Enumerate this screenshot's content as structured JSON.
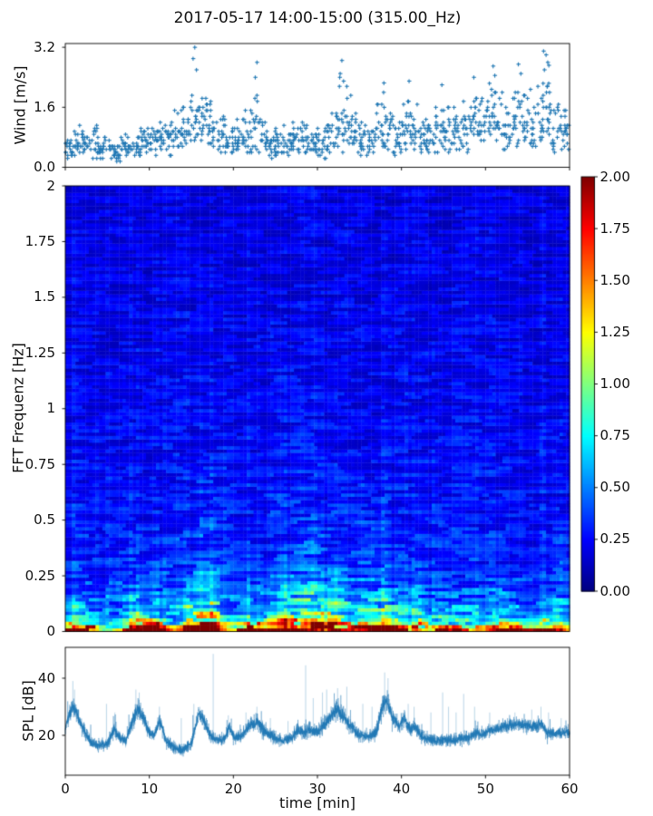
{
  "title": "2017-05-17 14:00-15:00 (315.00_Hz)",
  "chart_data": [
    {
      "type": "scatter",
      "name": "wind",
      "ylabel": "Wind [m/s]",
      "yticks": [
        0.0,
        1.6,
        3.2
      ],
      "ylim": [
        0,
        3.3
      ],
      "xlim": [
        0,
        60
      ],
      "xticks": [
        0,
        10,
        20,
        30,
        40,
        50,
        60
      ],
      "marker": "plus",
      "color": "#1f77b4",
      "points_per_minute": 19,
      "value_quantum": 0.08,
      "envelope_minutes": {
        "lo": [
          0.2,
          0.2,
          0.3,
          0.2,
          0.2,
          0.1,
          0.15,
          0.2,
          0.2,
          0.3,
          0.3,
          0.4,
          0.3,
          0.4,
          0.5,
          0.5,
          0.5,
          0.4,
          0.3,
          0.3,
          0.3,
          0.3,
          0.4,
          0.3,
          0.2,
          0.3,
          0.2,
          0.3,
          0.3,
          0.2,
          0.2,
          0.3,
          0.4,
          0.4,
          0.3,
          0.3,
          0.2,
          0.3,
          0.4,
          0.3,
          0.3,
          0.4,
          0.3,
          0.3,
          0.3,
          0.4,
          0.3,
          0.4,
          0.5,
          0.4,
          0.5,
          0.5,
          0.4,
          0.5,
          0.5,
          0.4,
          0.5,
          0.5,
          0.3,
          0.4
        ],
        "hi": [
          1.0,
          1.2,
          1.3,
          1.2,
          1.0,
          0.8,
          0.9,
          1.0,
          1.1,
          1.2,
          1.3,
          1.5,
          1.4,
          1.7,
          2.0,
          2.3,
          2.2,
          1.8,
          1.5,
          1.3,
          1.4,
          1.6,
          2.5,
          1.6,
          1.3,
          1.2,
          1.3,
          1.5,
          1.6,
          1.4,
          1.2,
          1.8,
          2.6,
          2.2,
          1.6,
          1.4,
          1.3,
          2.2,
          1.9,
          1.6,
          2.3,
          1.8,
          1.5,
          1.4,
          2.2,
          1.8,
          1.6,
          1.9,
          2.3,
          2.0,
          2.6,
          2.4,
          2.0,
          2.6,
          2.5,
          2.2,
          2.9,
          2.9,
          1.9,
          1.9
        ]
      },
      "peak_points": [
        [
          15.4,
          3.2
        ],
        [
          15.2,
          2.9
        ],
        [
          15.6,
          2.6
        ],
        [
          22.8,
          2.8
        ],
        [
          22.6,
          2.4
        ],
        [
          32.9,
          2.85
        ],
        [
          32.7,
          2.5
        ],
        [
          33.1,
          2.3
        ],
        [
          37.9,
          2.25
        ],
        [
          40.9,
          2.3
        ],
        [
          44.8,
          2.2
        ],
        [
          48.6,
          2.4
        ],
        [
          50.9,
          2.7
        ],
        [
          51.1,
          2.45
        ],
        [
          53.9,
          2.75
        ],
        [
          54.2,
          2.5
        ],
        [
          56.9,
          3.1
        ],
        [
          57.2,
          3.0
        ],
        [
          57.4,
          2.8
        ],
        [
          57.0,
          2.6
        ]
      ]
    },
    {
      "type": "heatmap",
      "name": "spectrogram",
      "ylabel": "FFT Frequenz [Hz]",
      "yticks": [
        0,
        0.25,
        0.5,
        0.75,
        1,
        1.25,
        1.5,
        1.75,
        2
      ],
      "ylim": [
        0,
        2
      ],
      "xlim": [
        0,
        60
      ],
      "colormap": "jet",
      "clim": [
        0.0,
        2.0
      ],
      "colorbar_ticks": [
        0.0,
        0.25,
        0.5,
        0.75,
        1.0,
        1.25,
        1.5,
        1.75,
        2.0
      ],
      "freq_profile": {
        "f": [
          0,
          0.008,
          0.018,
          0.03,
          0.045,
          0.07,
          0.1,
          0.15,
          0.22,
          0.32,
          0.5,
          0.8,
          1.2,
          1.6,
          2.0
        ],
        "v": [
          1.95,
          1.8,
          1.3,
          0.95,
          0.78,
          0.62,
          0.52,
          0.44,
          0.36,
          0.3,
          0.27,
          0.24,
          0.22,
          0.2,
          0.19
        ]
      },
      "time_streaks": [
        [
          1.2,
          1.2,
          1.6,
          0.12
        ],
        [
          2.8,
          0.8,
          1.3,
          0.1
        ],
        [
          9.0,
          1.6,
          1.7,
          0.15
        ],
        [
          11.2,
          1.0,
          1.4,
          0.12
        ],
        [
          14.8,
          0.8,
          1.5,
          0.2
        ],
        [
          16.6,
          1.4,
          2.1,
          0.45
        ],
        [
          18.0,
          0.6,
          1.4,
          0.2
        ],
        [
          21.3,
          1.0,
          1.45,
          0.18
        ],
        [
          23.2,
          0.8,
          1.35,
          0.25
        ],
        [
          26.2,
          1.3,
          1.6,
          0.3
        ],
        [
          29.0,
          1.6,
          1.9,
          0.3
        ],
        [
          32.0,
          1.4,
          1.85,
          0.3
        ],
        [
          34.6,
          1.0,
          1.45,
          0.2
        ],
        [
          37.0,
          1.4,
          1.95,
          0.3
        ],
        [
          39.2,
          1.0,
          1.5,
          0.2
        ],
        [
          41.9,
          0.7,
          1.45,
          0.25
        ],
        [
          45.0,
          0.7,
          1.35,
          0.2
        ],
        [
          52.0,
          1.2,
          1.25,
          0.15
        ],
        [
          58.6,
          1.5,
          1.6,
          0.15
        ],
        [
          6.0,
          1.5,
          0.75,
          0.1
        ],
        [
          13.0,
          1.0,
          0.8,
          0.1
        ],
        [
          20.0,
          1.5,
          0.8,
          0.1
        ],
        [
          44.0,
          2.0,
          0.8,
          0.1
        ],
        [
          47.5,
          2.0,
          0.85,
          0.1
        ]
      ]
    },
    {
      "type": "line",
      "name": "spl",
      "ylabel": "SPL [dB]",
      "xlabel": "time [min]",
      "yticks": [
        20,
        40
      ],
      "ylim": [
        6,
        50.8
      ],
      "xlim": [
        0,
        60
      ],
      "xticks": [
        0,
        10,
        20,
        30,
        40,
        50,
        60
      ],
      "color": "#1f77b4",
      "envelope_knots": {
        "t": [
          0,
          0.8,
          1.3,
          2,
          3,
          4,
          5,
          5.8,
          6.5,
          7.2,
          8,
          8.6,
          9.2,
          10,
          10.6,
          11.2,
          12,
          13,
          14,
          15,
          15.8,
          16.4,
          17.2,
          18,
          19,
          19.5,
          20.2,
          21,
          21.8,
          22.8,
          23.5,
          24.3,
          25,
          26,
          27,
          27.7,
          28.5,
          29.2,
          30,
          30.8,
          31.5,
          32.3,
          33,
          34,
          35,
          36,
          37,
          37.8,
          38.3,
          39,
          39.7,
          40.3,
          41,
          41.6,
          42.3,
          43,
          44,
          45,
          46,
          47,
          48,
          48.7,
          49.5,
          50.3,
          51,
          52,
          53,
          54,
          55,
          56,
          56.6,
          57.3,
          58,
          59,
          60
        ],
        "mean": [
          22,
          30,
          28,
          23,
          17.5,
          16.5,
          17,
          22,
          19,
          18,
          25,
          29,
          27,
          21,
          20,
          25,
          18,
          15.5,
          15,
          17,
          27,
          26,
          20,
          18.5,
          19,
          23,
          19,
          20,
          23,
          25,
          22,
          20,
          19,
          18,
          19.5,
          22,
          21,
          22,
          21,
          24,
          26,
          29,
          27,
          23,
          20,
          19.5,
          21,
          31,
          32,
          26,
          23,
          26,
          22,
          23,
          20,
          19,
          18,
          18.5,
          18,
          19,
          19,
          21,
          20,
          21.5,
          22,
          23,
          23.5,
          24,
          23.5,
          23,
          24,
          21,
          20.5,
          21,
          21
        ],
        "half": [
          2.5,
          3,
          3,
          2.5,
          2,
          2,
          2,
          2.5,
          2,
          2,
          3,
          3.5,
          3,
          2.5,
          2,
          2.5,
          2,
          2,
          2,
          2.5,
          3,
          3,
          2.5,
          2,
          2,
          2.5,
          2,
          2,
          2.5,
          3,
          2.5,
          2.5,
          2,
          2,
          2,
          2.5,
          2.5,
          3,
          2.5,
          3,
          3,
          3.5,
          3,
          2.5,
          2.5,
          2,
          2.5,
          3.5,
          3.5,
          3,
          2.5,
          2.5,
          2.5,
          2.5,
          2,
          2,
          2,
          2,
          2,
          2.5,
          2,
          2.5,
          2,
          2,
          2,
          2.2,
          2.2,
          2.2,
          2.2,
          2.2,
          2.5,
          2,
          2,
          2,
          2
        ]
      },
      "spikes": [
        [
          0.9,
          39
        ],
        [
          1.1,
          36
        ],
        [
          4.9,
          31
        ],
        [
          5.9,
          28
        ],
        [
          8.4,
          36
        ],
        [
          8.8,
          35
        ],
        [
          11.2,
          30
        ],
        [
          13.8,
          26
        ],
        [
          15.3,
          31
        ],
        [
          16.0,
          30
        ],
        [
          17.6,
          48.5
        ],
        [
          19.4,
          27
        ],
        [
          21.5,
          28
        ],
        [
          22.8,
          30
        ],
        [
          24.4,
          26
        ],
        [
          26.5,
          25
        ],
        [
          28.6,
          44.5
        ],
        [
          29.5,
          33
        ],
        [
          30.6,
          35
        ],
        [
          31.1,
          36
        ],
        [
          32.4,
          36.5
        ],
        [
          33.5,
          37
        ],
        [
          35.4,
          31
        ],
        [
          36.5,
          30
        ],
        [
          38.0,
          42
        ],
        [
          38.4,
          40
        ],
        [
          40.8,
          31
        ],
        [
          41.5,
          30
        ],
        [
          43.5,
          28
        ],
        [
          44.9,
          35
        ],
        [
          45.6,
          30
        ],
        [
          46.5,
          28
        ],
        [
          47.4,
          34.5
        ],
        [
          48.7,
          30
        ],
        [
          50.5,
          28
        ],
        [
          53.5,
          28
        ],
        [
          55.5,
          29
        ],
        [
          56.6,
          30
        ],
        [
          57.5,
          28
        ],
        [
          59.0,
          26
        ]
      ]
    }
  ]
}
